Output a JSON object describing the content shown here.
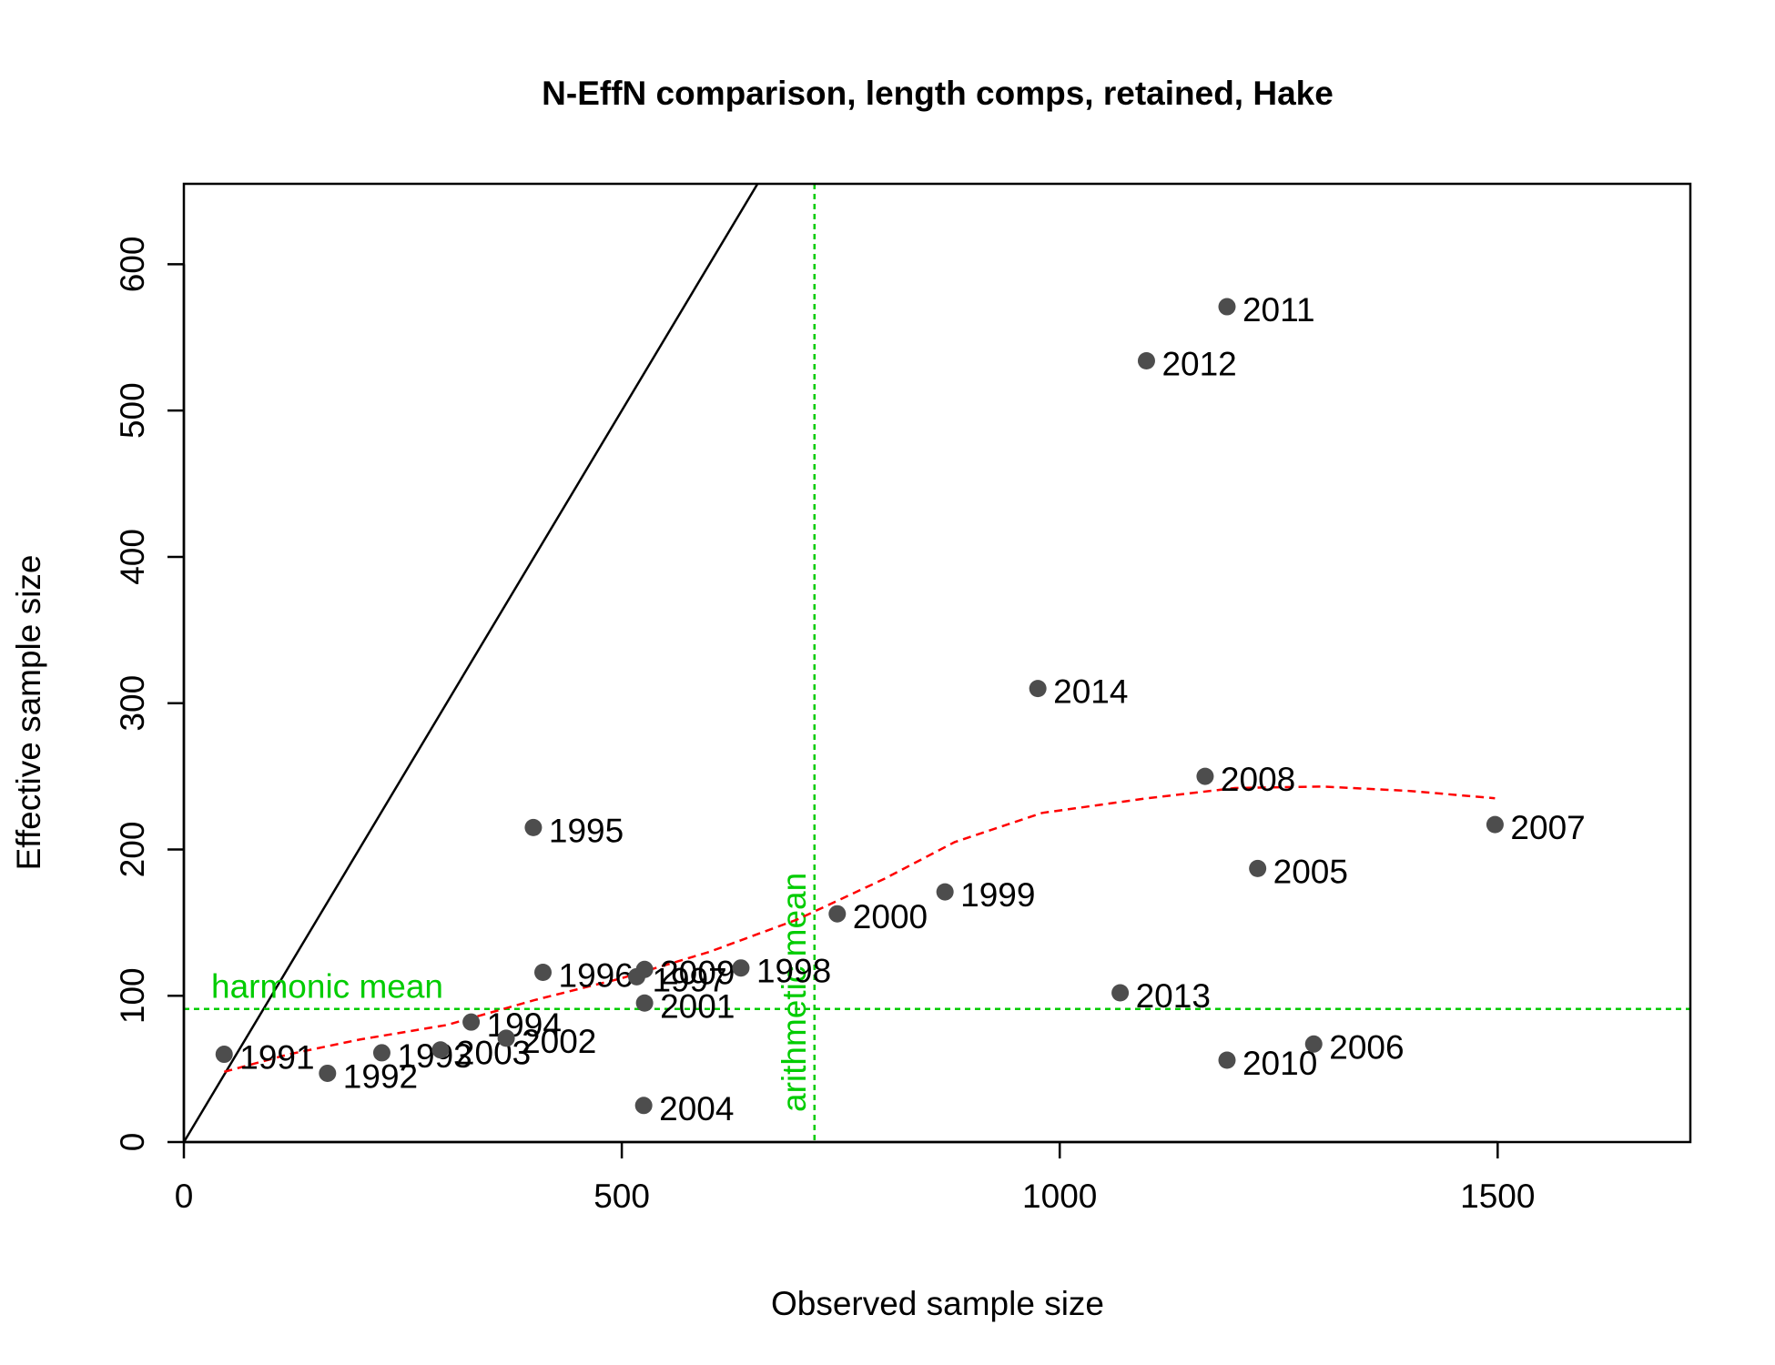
{
  "chart_data": {
    "type": "scatter",
    "title": "N-EffN comparison, length comps, retained, Hake",
    "xlabel": "Observed sample size",
    "ylabel": "Effective sample size",
    "xlim": [
      0,
      1720
    ],
    "ylim": [
      0,
      655
    ],
    "x_ticks": [
      0,
      500,
      1000,
      1500
    ],
    "y_ticks": [
      0,
      100,
      200,
      300,
      400,
      500,
      600
    ],
    "grid": false,
    "legend": "none",
    "points": [
      {
        "label": "1991",
        "x": 46,
        "y": 60
      },
      {
        "label": "1992",
        "x": 164,
        "y": 47
      },
      {
        "label": "1993",
        "x": 226,
        "y": 61
      },
      {
        "label": "2003",
        "x": 293,
        "y": 63
      },
      {
        "label": "1994",
        "x": 328,
        "y": 82
      },
      {
        "label": "2002",
        "x": 368,
        "y": 71
      },
      {
        "label": "1995",
        "x": 399,
        "y": 215
      },
      {
        "label": "1996",
        "x": 410,
        "y": 116
      },
      {
        "label": "1997",
        "x": 517,
        "y": 113
      },
      {
        "label": "2009",
        "x": 526,
        "y": 118
      },
      {
        "label": "2001",
        "x": 526,
        "y": 95
      },
      {
        "label": "2004",
        "x": 525,
        "y": 25
      },
      {
        "label": "1998",
        "x": 636,
        "y": 119
      },
      {
        "label": "2000",
        "x": 746,
        "y": 156
      },
      {
        "label": "1999",
        "x": 869,
        "y": 171
      },
      {
        "label": "2014",
        "x": 975,
        "y": 310
      },
      {
        "label": "2013",
        "x": 1069,
        "y": 102
      },
      {
        "label": "2012",
        "x": 1099,
        "y": 534
      },
      {
        "label": "2008",
        "x": 1166,
        "y": 250
      },
      {
        "label": "2011",
        "x": 1191,
        "y": 571
      },
      {
        "label": "2010",
        "x": 1191,
        "y": 56
      },
      {
        "label": "2005",
        "x": 1226,
        "y": 187
      },
      {
        "label": "2006",
        "x": 1290,
        "y": 67
      },
      {
        "label": "2007",
        "x": 1497,
        "y": 217
      }
    ],
    "smoother": {
      "x": [
        46,
        120,
        200,
        300,
        400,
        500,
        600,
        700,
        800,
        880,
        980,
        1100,
        1200,
        1300,
        1400,
        1497
      ],
      "y": [
        48,
        60,
        70,
        80,
        97,
        112,
        130,
        152,
        180,
        205,
        225,
        235,
        242,
        243,
        240,
        235
      ]
    },
    "identity_line": {
      "slope": 1
    },
    "harmonic_mean": {
      "label": "harmonic mean",
      "value": 91
    },
    "arithmetic_mean": {
      "label": "arithmetic mean",
      "value": 720
    },
    "colors": {
      "points": "#4d4d4d",
      "smoother": "#ff0000",
      "reference": "#00cc00",
      "identity": "#000000"
    }
  }
}
